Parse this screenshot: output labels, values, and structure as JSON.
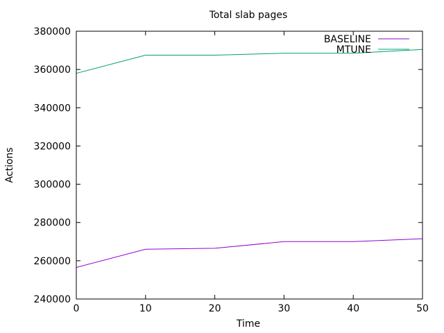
{
  "chart_data": {
    "type": "line",
    "title": "Total slab pages",
    "xlabel": "Time",
    "ylabel": "Actions",
    "xlim": [
      0,
      50
    ],
    "ylim": [
      240000,
      380000
    ],
    "xticks": [
      0,
      10,
      20,
      30,
      40,
      50
    ],
    "yticks": [
      240000,
      260000,
      280000,
      300000,
      320000,
      340000,
      360000,
      380000
    ],
    "grid": false,
    "legend_position": "top-right",
    "series": [
      {
        "name": "BASELINE",
        "color": "#9400d3",
        "x": [
          0,
          10,
          20,
          30,
          40,
          50
        ],
        "y": [
          256500,
          266000,
          266500,
          270000,
          270000,
          271500
        ]
      },
      {
        "name": "MTUNE",
        "color": "#009e73",
        "x": [
          0,
          10,
          20,
          30,
          40,
          50
        ],
        "y": [
          358000,
          367500,
          367500,
          368500,
          368500,
          370500
        ]
      }
    ]
  }
}
